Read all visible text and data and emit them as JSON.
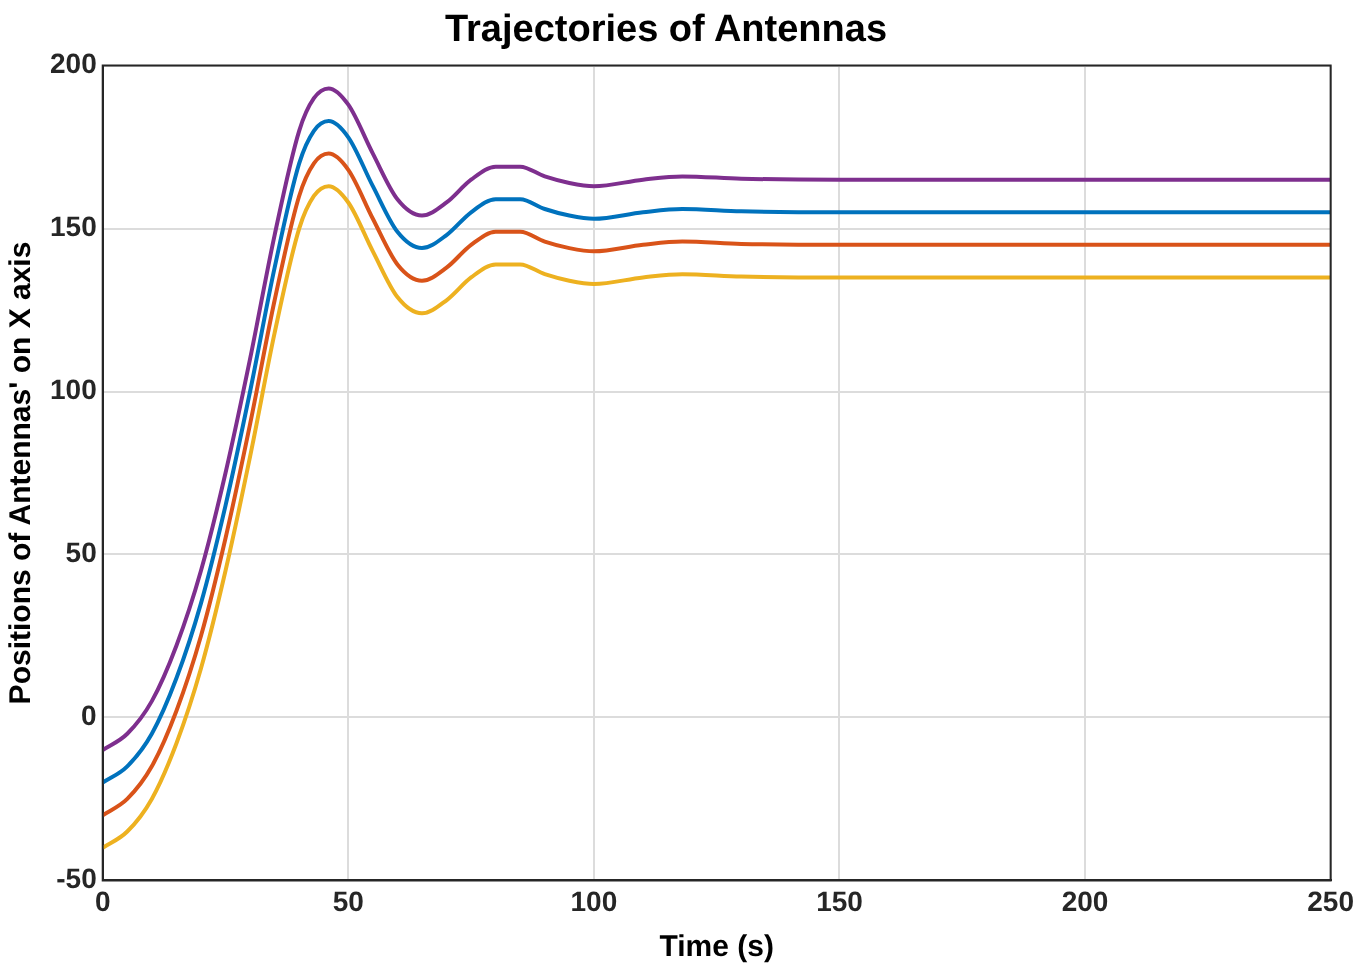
{
  "chart_data": {
    "type": "line",
    "title": "Trajectories of Antennas",
    "xlabel": "Time (s)",
    "ylabel": "Positions of Antennas' on X axis",
    "x": [
      0,
      5,
      10,
      15,
      20,
      25,
      30,
      35,
      40,
      43,
      46,
      50,
      55,
      60,
      65,
      70,
      75,
      80,
      85,
      90,
      95,
      100,
      110,
      118,
      130,
      150,
      250
    ],
    "series": [
      {
        "color": "#0072bd",
        "values": [
          -20,
          -15,
          -5,
          12,
          35,
          65,
          100,
          138,
          170,
          180,
          183,
          178,
          163,
          149,
          144,
          148,
          155,
          159,
          159,
          156,
          154,
          153,
          155,
          156,
          155.3,
          155,
          155
        ]
      },
      {
        "color": "#d95319",
        "values": [
          -30,
          -25,
          -15,
          2,
          25,
          55,
          90,
          128,
          160,
          170,
          173,
          168,
          153,
          139,
          134,
          138,
          145,
          149,
          149,
          146,
          144,
          143,
          145,
          146,
          145.3,
          145,
          145
        ]
      },
      {
        "color": "#edb120",
        "values": [
          -40,
          -35,
          -25,
          -8,
          15,
          45,
          80,
          118,
          150,
          160,
          163,
          158,
          143,
          129,
          124,
          128,
          135,
          139,
          139,
          136,
          134,
          133,
          135,
          136,
          135.3,
          135,
          135
        ]
      },
      {
        "color": "#7e2f8e",
        "values": [
          -10,
          -5,
          5,
          22,
          45,
          75,
          110,
          148,
          180,
          190,
          193,
          188,
          173,
          159,
          154,
          158,
          165,
          169,
          169,
          166,
          164,
          163,
          165,
          166,
          165.3,
          165,
          165
        ]
      }
    ],
    "xlim": [
      0,
      250
    ],
    "xticks": [
      0,
      50,
      100,
      150,
      200,
      250
    ],
    "ylim": [
      -50,
      200
    ],
    "yticks": [
      -50,
      0,
      50,
      100,
      150,
      200
    ],
    "grid": true,
    "legend": false,
    "marker": "none",
    "line_style": "solid"
  }
}
